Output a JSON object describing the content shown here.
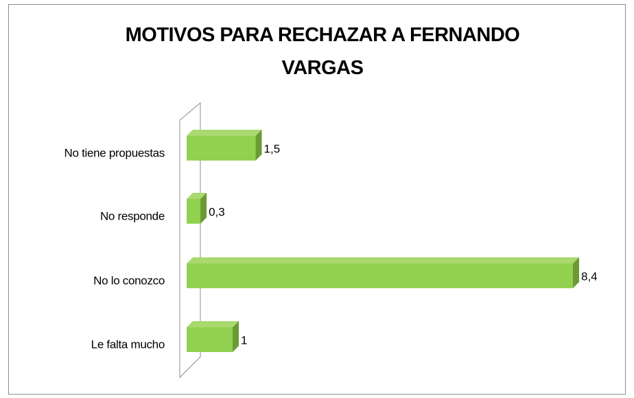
{
  "chart_data": {
    "type": "bar3d_horizontal",
    "title": "MOTIVOS PARA RECHAZAR A FERNANDO VARGAS",
    "categories": [
      "No tiene propuestas",
      "No responde",
      "No lo conozco",
      "Le falta mucho"
    ],
    "values": [
      1.5,
      0.3,
      8.4,
      1
    ],
    "value_labels": [
      "1,5",
      "0,3",
      "8,4",
      "1"
    ],
    "color": "#92d050"
  }
}
